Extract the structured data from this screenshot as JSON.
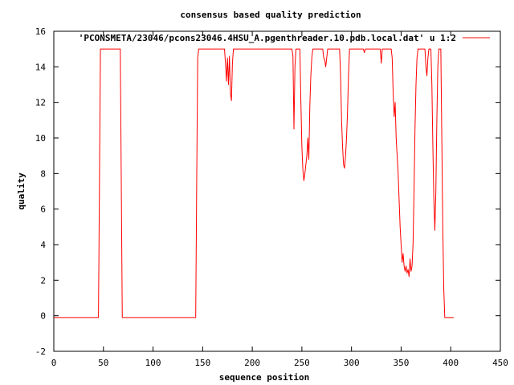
{
  "chart_data": {
    "type": "line",
    "title": "consensus based quality prediction",
    "xlabel": "sequence position",
    "ylabel": "quality",
    "xlim": [
      0,
      450
    ],
    "ylim": [
      -2,
      16
    ],
    "xticks": [
      0,
      50,
      100,
      150,
      200,
      250,
      300,
      350,
      400,
      450
    ],
    "yticks": [
      -2,
      0,
      2,
      4,
      6,
      8,
      10,
      12,
      14,
      16
    ],
    "grid": false,
    "legend_position": "top-right",
    "series": [
      {
        "name": "'PCONSMETA/23046/pcons23046.4HSU_A.pgenthreader.10.pdb.local.dat' u 1:2",
        "color": "#ff0000",
        "points": [
          [
            0,
            -0.1
          ],
          [
            45,
            -0.1
          ],
          [
            46,
            7.5
          ],
          [
            47,
            15
          ],
          [
            67,
            15
          ],
          [
            68,
            7.5
          ],
          [
            69,
            -0.1
          ],
          [
            143,
            -0.1
          ],
          [
            144,
            7.5
          ],
          [
            145,
            14.5
          ],
          [
            146,
            15
          ],
          [
            172,
            15
          ],
          [
            173,
            14.2
          ],
          [
            174,
            13.2
          ],
          [
            175,
            14.5
          ],
          [
            176,
            13.0
          ],
          [
            177,
            14.6
          ],
          [
            178,
            12.5
          ],
          [
            179,
            12.1
          ],
          [
            180,
            14.2
          ],
          [
            181,
            15
          ],
          [
            240,
            15
          ],
          [
            241,
            14.6
          ],
          [
            242,
            10.5
          ],
          [
            243,
            14
          ],
          [
            244,
            15
          ],
          [
            248,
            15
          ],
          [
            249,
            12
          ],
          [
            250,
            9.5
          ],
          [
            251,
            8.2
          ],
          [
            252,
            7.6
          ],
          [
            253,
            8.0
          ],
          [
            254,
            8.5
          ],
          [
            255,
            9.0
          ],
          [
            256,
            10.0
          ],
          [
            257,
            8.8
          ],
          [
            258,
            11.8
          ],
          [
            259,
            13.5
          ],
          [
            260,
            14.5
          ],
          [
            261,
            15
          ],
          [
            271,
            15
          ],
          [
            272,
            14.5
          ],
          [
            273,
            14.4
          ],
          [
            274,
            14.0
          ],
          [
            275,
            14.5
          ],
          [
            276,
            15
          ],
          [
            288,
            15
          ],
          [
            289,
            13.5
          ],
          [
            290,
            11
          ],
          [
            291,
            9.5
          ],
          [
            292,
            8.5
          ],
          [
            293,
            8.3
          ],
          [
            294,
            9.0
          ],
          [
            295,
            10.0
          ],
          [
            296,
            11.5
          ],
          [
            297,
            13.5
          ],
          [
            298,
            15
          ],
          [
            312,
            15
          ],
          [
            313,
            14.8
          ],
          [
            314,
            15
          ],
          [
            329,
            15
          ],
          [
            330,
            14.2
          ],
          [
            331,
            15
          ],
          [
            340,
            15
          ],
          [
            341,
            14.5
          ],
          [
            342,
            12.5
          ],
          [
            343,
            11.2
          ],
          [
            344,
            12.0
          ],
          [
            345,
            10.0
          ],
          [
            346,
            9.0
          ],
          [
            347,
            8.0
          ],
          [
            348,
            6.5
          ],
          [
            349,
            5.0
          ],
          [
            350,
            4.0
          ],
          [
            351,
            3.0
          ],
          [
            352,
            3.5
          ],
          [
            353,
            2.8
          ],
          [
            354,
            2.5
          ],
          [
            355,
            2.8
          ],
          [
            356,
            2.4
          ],
          [
            357,
            2.6
          ],
          [
            358,
            2.2
          ],
          [
            359,
            3.2
          ],
          [
            360,
            2.5
          ],
          [
            361,
            2.8
          ],
          [
            362,
            4.0
          ],
          [
            363,
            7.0
          ],
          [
            364,
            10.5
          ],
          [
            365,
            13.0
          ],
          [
            366,
            14.5
          ],
          [
            367,
            15
          ],
          [
            374,
            15
          ],
          [
            375,
            14.0
          ],
          [
            376,
            13.5
          ],
          [
            377,
            14.5
          ],
          [
            378,
            15
          ],
          [
            380,
            15
          ],
          [
            381,
            13.0
          ],
          [
            382,
            9.5
          ],
          [
            383,
            6.5
          ],
          [
            384,
            4.8
          ],
          [
            385,
            7.0
          ],
          [
            386,
            11.0
          ],
          [
            387,
            14.0
          ],
          [
            388,
            15
          ],
          [
            390,
            15
          ],
          [
            391,
            10.0
          ],
          [
            392,
            5.0
          ],
          [
            393,
            1.5
          ],
          [
            394,
            -0.1
          ],
          [
            403,
            -0.1
          ]
        ]
      }
    ]
  }
}
